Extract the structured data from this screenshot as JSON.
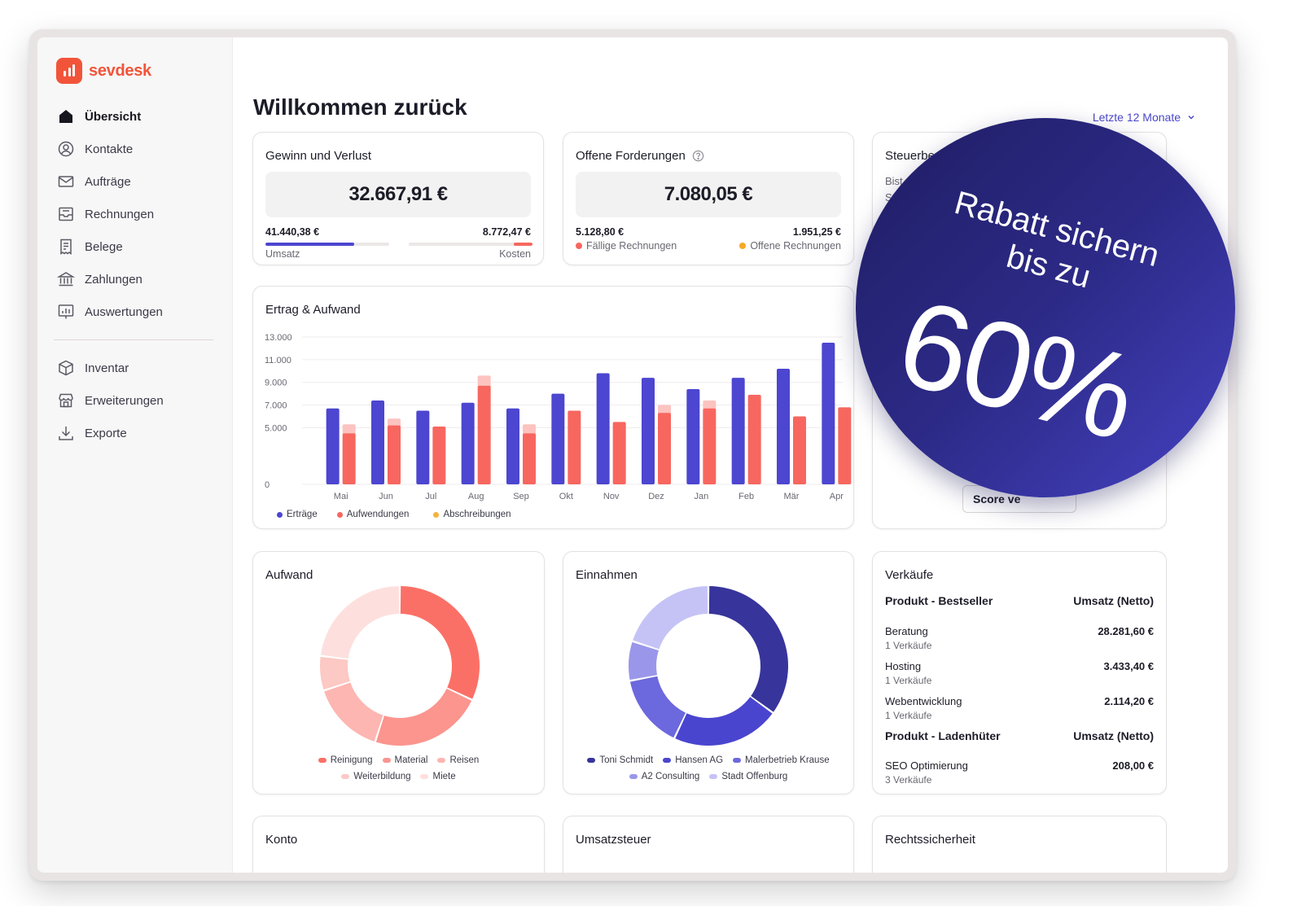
{
  "brand": {
    "name": "sevdesk",
    "color": "#f2543a"
  },
  "page": {
    "title": "Willkommen zurück",
    "period": "Letzte 12 Monate"
  },
  "sidebar": {
    "items": [
      {
        "label": "Übersicht",
        "icon": "home-icon",
        "active": true
      },
      {
        "label": "Kontakte",
        "icon": "user-circle-icon"
      },
      {
        "label": "Aufträge",
        "icon": "mail-icon"
      },
      {
        "label": "Rechnungen",
        "icon": "inbox-icon"
      },
      {
        "label": "Belege",
        "icon": "receipt-icon"
      },
      {
        "label": "Zahlungen",
        "icon": "bank-icon"
      },
      {
        "label": "Auswertungen",
        "icon": "chart-icon"
      }
    ],
    "items2": [
      {
        "label": "Inventar",
        "icon": "box-icon"
      },
      {
        "label": "Erweiterungen",
        "icon": "store-icon"
      },
      {
        "label": "Exporte",
        "icon": "download-icon"
      }
    ]
  },
  "gewinn": {
    "title": "Gewinn und Verlust",
    "value": "32.667,91 €",
    "left_value": "41.440,38 €",
    "right_value": "8.772,47 €",
    "left_label": "Umsatz",
    "right_label": "Kosten",
    "left_progress": 0.72,
    "right_progress": 0.15
  },
  "forderungen": {
    "title": "Offene Forderungen",
    "value": "7.080,05 €",
    "left_value": "5.128,80 €",
    "right_value": "1.951,25 €",
    "left_label": "Fällige Rechnungen",
    "right_label": "Offene Rechnungen"
  },
  "steuerberater": {
    "title": "Steuerberater",
    "text1": "Bist du",
    "text2": "Steu",
    "button": "Score ve"
  },
  "promo": {
    "line1": "Rabatt sichern",
    "line2": "bis zu",
    "big": "60%"
  },
  "colors": {
    "ertraege": "#4c46d0",
    "aufwendungen": "#f7675f",
    "abschreibungen": "#f7b23b",
    "accent": "#4a47c9"
  },
  "chart_data": [
    {
      "type": "bar",
      "title": "Ertrag & Aufwand",
      "categories": [
        "Mai",
        "Jun",
        "Jul",
        "Aug",
        "Sep",
        "Okt",
        "Nov",
        "Dez",
        "Jan",
        "Feb",
        "Mär",
        "Apr"
      ],
      "series": [
        {
          "name": "Erträge",
          "color": "#4c46d0",
          "values": [
            6700,
            7400,
            6500,
            7200,
            6700,
            8000,
            9800,
            9400,
            8400,
            9400,
            10200,
            12500
          ]
        },
        {
          "name": "Aufwendungen",
          "color": "#f7675f",
          "values": [
            4500,
            5200,
            5100,
            8700,
            4500,
            6500,
            5500,
            6300,
            6700,
            7900,
            6000,
            6800
          ]
        }
      ],
      "overlay": {
        "name": "light-top",
        "values": [
          800,
          600,
          0,
          900,
          800,
          0,
          0,
          700,
          700,
          0,
          0,
          0
        ]
      },
      "legend": [
        "Erträge",
        "Aufwendungen",
        "Abschreibungen"
      ],
      "yticks": [
        "13.000",
        "11.000",
        "9.000",
        "7.000",
        "5.000",
        "0"
      ],
      "ylim": [
        0,
        13000
      ],
      "grid": true,
      "legend_position": "bottom-left"
    },
    {
      "type": "pie",
      "title": "Aufwand",
      "labels": [
        "Reinigung",
        "Material",
        "Reisen",
        "Weiterbildung",
        "Miete"
      ],
      "values": [
        32,
        23,
        15,
        7,
        23
      ],
      "colors": [
        "#fb7066",
        "#fb958e",
        "#fdb6b1",
        "#fcc9c5",
        "#fde0de"
      ]
    },
    {
      "type": "pie",
      "title": "Einnahmen",
      "labels": [
        "Toni Schmidt",
        "Hansen AG",
        "Malerbetrieb Krause",
        "A2 Consulting",
        "Stadt Offenburg"
      ],
      "values": [
        35,
        22,
        15,
        8,
        20
      ],
      "colors": [
        "#37349c",
        "#4a45cf",
        "#6c68dd",
        "#9a97ea",
        "#c5c3f5"
      ]
    }
  ],
  "verkaeufe": {
    "title": "Verkäufe",
    "bestseller_head": "Produkt - Bestseller",
    "bestseller_col": "Umsatz (Netto)",
    "bestseller": [
      {
        "name": "Beratung",
        "sub": "1 Verkäufe",
        "amount": "28.281,60 €"
      },
      {
        "name": "Hosting",
        "sub": "1 Verkäufe",
        "amount": "3.433,40 €"
      },
      {
        "name": "Webentwicklung",
        "sub": "1 Verkäufe",
        "amount": "2.114,20 €"
      }
    ],
    "laden_head": "Produkt - Ladenhüter",
    "laden_col": "Umsatz (Netto)",
    "laden": [
      {
        "name": "SEO Optimierung",
        "sub": "3 Verkäufe",
        "amount": "208,00 €"
      }
    ]
  },
  "bottom": {
    "konto": "Konto",
    "umsatzsteuer": "Umsatzsteuer",
    "rechtssicherheit": "Rechtssicherheit"
  }
}
